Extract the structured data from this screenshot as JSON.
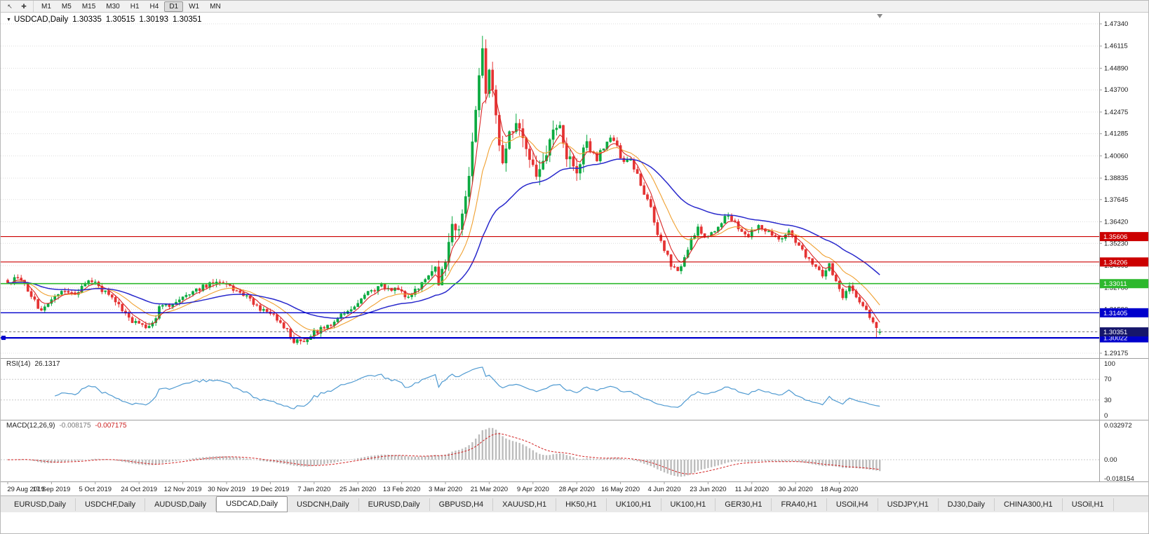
{
  "toolbar": {
    "icons": [
      {
        "id": "cursor-icon",
        "glyph": "↖"
      },
      {
        "id": "crosshair-icon",
        "glyph": "✚"
      }
    ],
    "timeframes": [
      "M1",
      "M5",
      "M15",
      "M30",
      "H1",
      "H4",
      "D1",
      "W1",
      "MN"
    ],
    "active_timeframe": "D1"
  },
  "chart": {
    "collapse_icon": "▼",
    "symbol_label": "USDCAD,Daily",
    "ohlc": {
      "open": "1.30335",
      "high": "1.30515",
      "low": "1.30193",
      "close": "1.30351"
    },
    "price_axis_labels": [
      "1.47340",
      "1.46115",
      "1.44890",
      "1.43700",
      "1.42475",
      "1.41285",
      "1.40060",
      "1.38835",
      "1.37645",
      "1.36420",
      "1.35230",
      "1.34005",
      "1.32780",
      "1.31590",
      "1.30365",
      "1.29175"
    ],
    "date_labels": [
      "29 Aug 2019",
      "17 Sep 2019",
      "5 Oct 2019",
      "24 Oct 2019",
      "12 Nov 2019",
      "30 Nov 2019",
      "19 Dec 2019",
      "7 Jan 2020",
      "25 Jan 2020",
      "13 Feb 2020",
      "3 Mar 2020",
      "21 Mar 2020",
      "9 Apr 2020",
      "28 Apr 2020",
      "16 May 2020",
      "4 Jun 2020",
      "23 Jun 2020",
      "11 Jul 2020",
      "30 Jul 2020",
      "18 Aug 2020"
    ],
    "levels": [
      {
        "label": "1.35606",
        "price": 1.35606,
        "color": "#cc0000",
        "line_width": 1.1,
        "handle": false
      },
      {
        "label": "1.34206",
        "price": 1.34206,
        "color": "#cc0000",
        "line_width": 1.1,
        "handle": false
      },
      {
        "label": "1.33011",
        "price": 1.33011,
        "color": "#2db82d",
        "line_width": 1.6,
        "handle": false
      },
      {
        "label": "1.31405",
        "price": 1.31405,
        "color": "#0000cc",
        "line_width": 1.4,
        "handle": false
      },
      {
        "label": "1.30022",
        "price": 1.30022,
        "color": "#0000cc",
        "line_width": 2.2,
        "handle": true
      }
    ],
    "current_price": {
      "label": "1.30351",
      "price": 1.30351,
      "badge_color": "#16166b"
    },
    "colors": {
      "up": "#0caa41",
      "down": "#e53333",
      "ma_fast": "#d92626",
      "ma_mid": "#f0a030",
      "ma_slow": "#2929cc",
      "grid": "#dcdcdc",
      "axis_text": "#1a1a1a",
      "separator": "#9f9f9f"
    }
  },
  "rsi_panel": {
    "name": "RSI(14)",
    "value": "26.1317",
    "axis_labels": [
      "100",
      "70",
      "30",
      "0"
    ],
    "level_lines": [
      70,
      30
    ],
    "line_color": "#4f9ad1"
  },
  "macd_panel": {
    "name": "MACD(12,26,9)",
    "value_main": "-0.008175",
    "value_signal": "-0.007175",
    "axis_labels": [
      "0.032972",
      "0.00",
      "-0.018154"
    ],
    "hist_color": "#bdbdbd",
    "signal_color": "#d22222"
  },
  "chart_data": {
    "type": "candlestick",
    "symbol": "USDCAD",
    "timeframe": "Daily",
    "x_start_date": "29 Aug 2019",
    "x_end_date": "2 Sep 2020",
    "days": 260,
    "y_range": [
      1.29175,
      1.4734
    ],
    "rsi_range": [
      0,
      100
    ],
    "macd_range": [
      -0.018154,
      0.032972
    ],
    "ma_periods": {
      "fast": 5,
      "mid": 14,
      "slow": 40
    },
    "indicators": {
      "rsi_period": 14,
      "macd": [
        12,
        26,
        9
      ]
    },
    "price_anchors": [
      [
        0,
        1.3295
      ],
      [
        3,
        1.334
      ],
      [
        6,
        1.327
      ],
      [
        10,
        1.3145
      ],
      [
        13,
        1.3215
      ],
      [
        17,
        1.3265
      ],
      [
        20,
        1.3245
      ],
      [
        24,
        1.3325
      ],
      [
        28,
        1.327
      ],
      [
        32,
        1.3195
      ],
      [
        36,
        1.311
      ],
      [
        40,
        1.306
      ],
      [
        43,
        1.3075
      ],
      [
        45,
        1.3165
      ],
      [
        48,
        1.3185
      ],
      [
        52,
        1.323
      ],
      [
        56,
        1.326
      ],
      [
        60,
        1.33
      ],
      [
        64,
        1.33
      ],
      [
        68,
        1.3255
      ],
      [
        72,
        1.321
      ],
      [
        76,
        1.315
      ],
      [
        80,
        1.3105
      ],
      [
        83,
        1.304
      ],
      [
        85,
        1.299
      ],
      [
        88,
        1.2968
      ],
      [
        91,
        1.3035
      ],
      [
        95,
        1.306
      ],
      [
        99,
        1.313
      ],
      [
        103,
        1.317
      ],
      [
        107,
        1.3245
      ],
      [
        111,
        1.329
      ],
      [
        115,
        1.327
      ],
      [
        119,
        1.323
      ],
      [
        123,
        1.3295
      ],
      [
        126,
        1.3385
      ],
      [
        128,
        1.333
      ],
      [
        130,
        1.3415
      ],
      [
        132,
        1.3655
      ],
      [
        134,
        1.361
      ],
      [
        136,
        1.3745
      ],
      [
        138,
        1.406
      ],
      [
        140,
        1.444
      ],
      [
        141,
        1.462
      ],
      [
        142,
        1.4385
      ],
      [
        143,
        1.448
      ],
      [
        145,
        1.419
      ],
      [
        147,
        1.3995
      ],
      [
        149,
        1.413
      ],
      [
        151,
        1.4205
      ],
      [
        153,
        1.409
      ],
      [
        155,
        1.4005
      ],
      [
        157,
        1.3875
      ],
      [
        159,
        1.399
      ],
      [
        161,
        1.409
      ],
      [
        163,
        1.418
      ],
      [
        165,
        1.4095
      ],
      [
        167,
        1.3965
      ],
      [
        169,
        1.3885
      ],
      [
        171,
        1.406
      ],
      [
        173,
        1.403
      ],
      [
        175,
        1.3985
      ],
      [
        177,
        1.406
      ],
      [
        179,
        1.4105
      ],
      [
        181,
        1.405
      ],
      [
        183,
        1.3965
      ],
      [
        185,
        1.3995
      ],
      [
        187,
        1.3895
      ],
      [
        189,
        1.3785
      ],
      [
        191,
        1.3725
      ],
      [
        193,
        1.3575
      ],
      [
        195,
        1.3495
      ],
      [
        197,
        1.3405
      ],
      [
        199,
        1.3365
      ],
      [
        201,
        1.345
      ],
      [
        203,
        1.3545
      ],
      [
        205,
        1.3605
      ],
      [
        208,
        1.3555
      ],
      [
        211,
        1.3625
      ],
      [
        214,
        1.3685
      ],
      [
        217,
        1.3605
      ],
      [
        220,
        1.3565
      ],
      [
        223,
        1.3625
      ],
      [
        226,
        1.3585
      ],
      [
        229,
        1.3545
      ],
      [
        232,
        1.3585
      ],
      [
        235,
        1.3515
      ],
      [
        238,
        1.3425
      ],
      [
        240,
        1.3385
      ],
      [
        242,
        1.3355
      ],
      [
        244,
        1.3405
      ],
      [
        246,
        1.3315
      ],
      [
        248,
        1.3235
      ],
      [
        250,
        1.3285
      ],
      [
        252,
        1.3215
      ],
      [
        254,
        1.3175
      ],
      [
        256,
        1.3115
      ],
      [
        258,
        1.3045
      ],
      [
        259,
        1.30351
      ]
    ],
    "special_bars": {
      "141": {
        "high": 1.4668
      },
      "258": {
        "low": 1.2999
      },
      "259": {
        "open": 1.30335,
        "high": 1.30515,
        "low": 1.30193,
        "close": 1.30351
      }
    }
  },
  "tabs": {
    "items": [
      "EURUSD,Daily",
      "USDCHF,Daily",
      "AUDUSD,Daily",
      "USDCAD,Daily",
      "USDCNH,Daily",
      "EURUSD,Daily",
      "GBPUSD,H4",
      "XAUUSD,H1",
      "HK50,H1",
      "UK100,H1",
      "UK100,H1",
      "GER30,H1",
      "FRA40,H1",
      "USOil,H4",
      "USDJPY,H1",
      "DJ30,Daily",
      "CHINA300,H1",
      "USOil,H1"
    ],
    "active_index": 3
  }
}
